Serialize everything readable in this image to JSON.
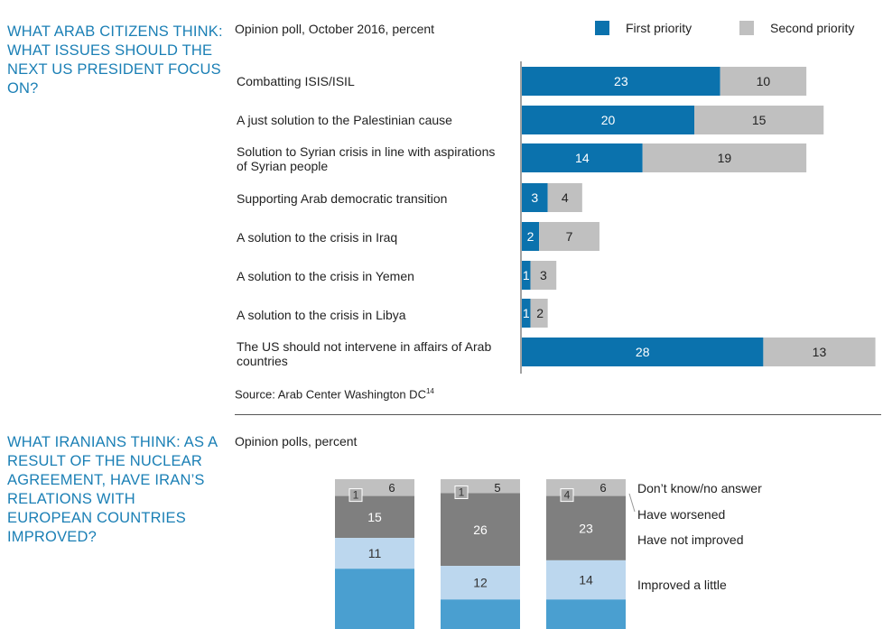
{
  "section1": {
    "heading": "WHAT ARAB CITIZENS THINK: WHAT ISSUES SHOULD THE NEXT US PRESIDENT FOCUS ON?",
    "subtitle": "Opinion poll, October 2016, percent",
    "source_text": "Source: Arab Center Washington DC",
    "source_ref": "14"
  },
  "section2": {
    "heading": "WHAT IRANIANS THINK: AS A RESULT OF THE NUCLEAR AGREEMENT, HAVE IRAN’S RELATIONS WITH EUROPEAN COUNTRIES IMPROVED?",
    "subtitle": "Opinion polls, percent"
  },
  "colors": {
    "first": "#0b72ad",
    "second": "#c0c0c0",
    "dont_know": "#c0c0c0",
    "worsened": "#8a8a8a",
    "not_improved": "#7f7f7f",
    "improved_little": "#bcd7ee",
    "improved_lot": "#4a9fd0",
    "heading": "#1a7fb5"
  },
  "chart_data": [
    {
      "type": "bar",
      "orientation": "horizontal",
      "stacked": true,
      "categories": [
        "Combatting ISIS/ISIL",
        "A just solution to the Palestinian cause",
        "Solution to Syrian crisis in line with aspirations of Syrian people",
        "Supporting Arab democratic transition",
        "A solution to the crisis in Iraq",
        "A solution to the crisis in Yemen",
        "A solution to the crisis in Libya",
        "The US should not intervene in affairs of Arab countries"
      ],
      "series": [
        {
          "name": "First priority",
          "values": [
            23,
            20,
            14,
            3,
            2,
            1,
            1,
            28
          ]
        },
        {
          "name": "Second priority",
          "values": [
            10,
            15,
            19,
            4,
            7,
            3,
            2,
            13
          ]
        }
      ],
      "legend": "top-right"
    },
    {
      "type": "bar",
      "orientation": "vertical",
      "stacked": true,
      "categories": [
        "",
        "",
        ""
      ],
      "series": [
        {
          "name": "Improved a little",
          "values": [
            11,
            12,
            14
          ]
        },
        {
          "name": "Have not improved",
          "values": [
            15,
            26,
            23
          ]
        },
        {
          "name": "Have worsened",
          "values": [
            1,
            1,
            4
          ]
        },
        {
          "name": "Don’t know/no answer",
          "values": [
            6,
            5,
            6
          ]
        }
      ],
      "legend": "right"
    }
  ]
}
